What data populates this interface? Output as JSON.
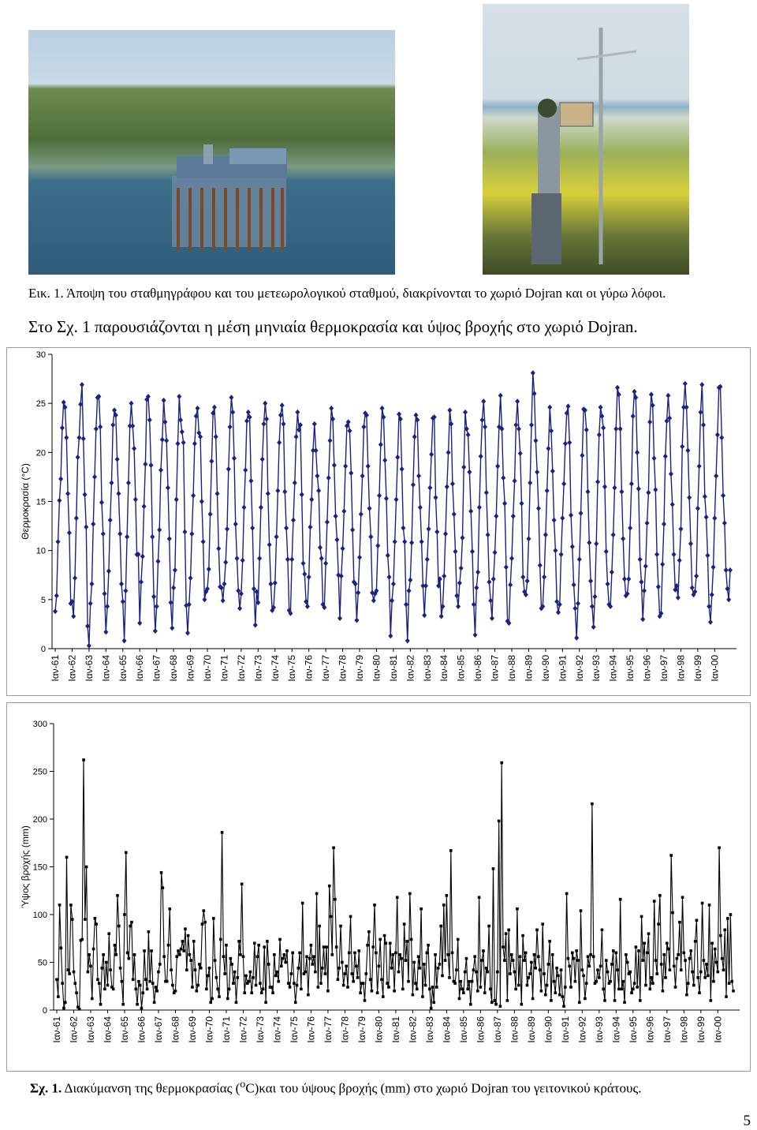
{
  "photos": {
    "left_alt": "",
    "right_alt": ""
  },
  "captions": {
    "figure1": "Εικ. 1. Άποψη του σταθμηγράφου και του μετεωρολογικού σταθμού, διακρίνονται το χωριό Dojran και οι γύρω λόφοι.",
    "intro_prefix": "Στο Σχ. 1 παρουσιάζονται η μέση μηνιαία θερμοκρασία και ύψος βροχής στο χωριό Dojran.",
    "figure2_prefix": "Σχ. 1.",
    "figure2_text_a": " Διακύμανση της θερμοκρασίας (",
    "figure2_sup": "o",
    "figure2_text_b": "C)και του ύψους βροχής (mm) στο χωριό Dojran του γειτονικού κράτους.",
    "page_number": "5"
  },
  "chart_data": [
    {
      "type": "line",
      "title": "",
      "ylabel": "Θερμοκρασία (°C)",
      "xlabel": "",
      "ylim": [
        0,
        30
      ],
      "yticks": [
        0,
        5,
        10,
        15,
        20,
        25,
        30
      ],
      "grid": false,
      "marker": "diamond",
      "color": "#1a237e",
      "xtick_labels": [
        "Ιαν-61",
        "Ιαν-62",
        "Ιαν-63",
        "Ιαν-64",
        "Ιαν-65",
        "Ιαν-66",
        "Ιαν-67",
        "Ιαν-68",
        "Ιαν-69",
        "Ιαν-70",
        "Ιαν-71",
        "Ιαν-72",
        "Ιαν-73",
        "Ιαν-74",
        "Ιαν-75",
        "Ιαν-76",
        "Ιαν-77",
        "Ιαν-78",
        "Ιαν-79",
        "Ιαν-80",
        "Ιαν-81",
        "Ιαν-82",
        "Ιαν-83",
        "Ιαν-84",
        "Ιαν-85",
        "Ιαν-86",
        "Ιαν-87",
        "Ιαν-88",
        "Ιαν-89",
        "Ιαν-90",
        "Ιαν-91",
        "Ιαν-92",
        "Ιαν-93",
        "Ιαν-94",
        "Ιαν-95",
        "Ιαν-96",
        "Ιαν-97",
        "Ιαν-98",
        "Ιαν-99",
        "Ιαν-00"
      ],
      "values": [
        3.8,
        5.4,
        10.9,
        15.1,
        17.3,
        22.5,
        25.1,
        24.6,
        21.5,
        15.8,
        11.8,
        4.6,
        4.8,
        3.3,
        7.2,
        13.3,
        19.5,
        21.5,
        24.9,
        26.9,
        21.4,
        15.7,
        12.4,
        2.3,
        0.3,
        4.6,
        6.6,
        12.7,
        17.5,
        22.4,
        25.6,
        25.7,
        22.6,
        14.9,
        11.7,
        5.6,
        1.7,
        4.3,
        7.9,
        13.1,
        16.9,
        22.8,
        24.3,
        23.8,
        19.3,
        15.8,
        11.7,
        6.6,
        4.8,
        0.8,
        5.9,
        11.4,
        16.9,
        22.7,
        25.0,
        22.7,
        20.4,
        15.2,
        9.6,
        9.6,
        2.6,
        6.8,
        9.4,
        14.5,
        18.8,
        25.4,
        25.7,
        23.3,
        18.7,
        11.4,
        5.3,
        1.8,
        4.3,
        8.9,
        12.1,
        18.2,
        21.3,
        25.3,
        23.1,
        21.2,
        16.4,
        11.2,
        4.7,
        2.1,
        6.2,
        8.0,
        15.2,
        20.9,
        25.7,
        23.3,
        22.1,
        21.0,
        11.9,
        4.4,
        1.6,
        4.5,
        7.2,
        11.7,
        15.6,
        20.9,
        23.7,
        24.5,
        22.0,
        21.6,
        15.0,
        10.9,
        5.0,
        5.8,
        6.1,
        8.1,
        13.7,
        19.1,
        24.0,
        24.6,
        21.6,
        15.8,
        10.2,
        6.3,
        6.2,
        4.9,
        6.6,
        8.8,
        12.2,
        18.3,
        22.6,
        25.6,
        24.1,
        19.4,
        12.7,
        9.2,
        5.9,
        4.1,
        5.6,
        9.0,
        14.4,
        18.2,
        23.2,
        24.1,
        23.6,
        17.1,
        12.3,
        6.1,
        2.4,
        5.8,
        4.7,
        9.2,
        14.4,
        19.3,
        22.9,
        25.0,
        23.4,
        15.8,
        10.6,
        6.6,
        3.9,
        4.2,
        6.7,
        11.4,
        16.1,
        21.0,
        23.8,
        24.8,
        22.9,
        16.0,
        12.3,
        9.1,
        3.9,
        3.6,
        9.1,
        13.1,
        16.9,
        21.6,
        24.1,
        22.3,
        22.8,
        15.7,
        8.7,
        7.6,
        4.8,
        4.3,
        7.3,
        12.4,
        15.2,
        20.2,
        22.9,
        20.2,
        17.6,
        16.1,
        10.3,
        9.2,
        4.5,
        4.2,
        8.7,
        12.9,
        17.4,
        21.2,
        24.5,
        23.4,
        18.7,
        13.5,
        11.1,
        7.5,
        3.1,
        7.4,
        10.2,
        14.0,
        18.6,
        22.7,
        23.1,
        22.2,
        17.9,
        12.1,
        6.8,
        6.6,
        2.9,
        5.7,
        9.3,
        13.7,
        17.6,
        22.6,
        24.0,
        23.8,
        18.6,
        14.3,
        11.4,
        5.7,
        4.9,
        5.6,
        5.9,
        10.5,
        15.6,
        20.8,
        24.5,
        23.6,
        19.2,
        15.3,
        9.5,
        7.3,
        1.3,
        4.9,
        6.6,
        10.9,
        15.2,
        19.5,
        23.9,
        23.4,
        18.3,
        12.3,
        10.9,
        4.5,
        0.8,
        5.9,
        7.0,
        10.8,
        16.7,
        21.6,
        23.8,
        23.3,
        17.6,
        14.4,
        10.9,
        6.4,
        3.4,
        6.4,
        9.1,
        12.2,
        16.4,
        19.8,
        23.5,
        23.6,
        15.4,
        11.9,
        6.4,
        7.1,
        3.3,
        4.3,
        7.4,
        11.7,
        16.5,
        20.0,
        24.3,
        22.9,
        16.8,
        13.7,
        9.9,
        5.4,
        4.3,
        6.7,
        8.2,
        11.3,
        18.5,
        24.1,
        22.4,
        21.8,
        18.0,
        14.0,
        9.9,
        4.5,
        1.4,
        6.2,
        7.8,
        14.4,
        19.6,
        23.3,
        25.2,
        22.6,
        15.9,
        11.6,
        6.8,
        4.9,
        3.1,
        7.1,
        9.8,
        13.5,
        18.6,
        22.6,
        25.8,
        22.4,
        17.4,
        14.8,
        8.3,
        2.8,
        2.6,
        6.5,
        9.2,
        13.5,
        17.1,
        22.8,
        25.2,
        22.4,
        19.9,
        14.8,
        7.3,
        5.8,
        5.5,
        6.9,
        11.2,
        16.9,
        22.8,
        28.1,
        26.0,
        21.2,
        18.0,
        14.3,
        8.5,
        4.1,
        4.3,
        7.3,
        11.6,
        16.1,
        20.4,
        24.6,
        22.2,
        18.1,
        13.1,
        10.0,
        4.8,
        3.7,
        4.5,
        9.6,
        13.3,
        16.8,
        20.9,
        24.0,
        24.7,
        21.0,
        13.6,
        10.4,
        6.5,
        4.1,
        1.1,
        4.6,
        9.1,
        13.8,
        19.7,
        24.4,
        24.3,
        22.3,
        16.0,
        10.8,
        6.9,
        4.3,
        2.2,
        5.3,
        10.7,
        17.0,
        21.8,
        24.6,
        23.7,
        22.5,
        16.5,
        9.9,
        6.6,
        4.5,
        4.3,
        7.8,
        11.6,
        16.4,
        22.4,
        26.6,
        25.9,
        22.4,
        16.0,
        11.2,
        7.1,
        5.4,
        5.6,
        7.1,
        12.3,
        16.8,
        23.7,
        26.2,
        25.6,
        20.0,
        16.3,
        9.1,
        6.8,
        3.0,
        5.9,
        8.4,
        12.8,
        15.9,
        23.1,
        25.9,
        24.8,
        19.4,
        16.2,
        9.6,
        6.3,
        3.3,
        3.6,
        8.6,
        12.7,
        19.6,
        23.2,
        25.8,
        23.5,
        17.8,
        14.7,
        9.6,
        6.0,
        6.4,
        5.2,
        9.0,
        12.2,
        20.6,
        24.6,
        27.0,
        24.6,
        20.2,
        15.4,
        10.7,
        6.2,
        5.5,
        5.8,
        7.4,
        14.3,
        18.6,
        24.1,
        26.9,
        22.8,
        15.5,
        13.4,
        9.5,
        4.3,
        2.7,
        5.5,
        8.3,
        13.3,
        17.6,
        21.8,
        26.6,
        26.7,
        21.5,
        15.6,
        12.8,
        8.0,
        6.1,
        5.0,
        8.0
      ]
    },
    {
      "type": "line",
      "title": "",
      "ylabel": "Ύψος βροχής (mm)",
      "xlabel": "",
      "ylim": [
        0,
        300
      ],
      "yticks": [
        0,
        50,
        100,
        150,
        200,
        250,
        300
      ],
      "grid": false,
      "marker": "square",
      "color": "#000000",
      "xtick_labels": [
        "Ιαν-61",
        "Ιαν-62",
        "Ιαν-63",
        "Ιαν-64",
        "Ιαν-65",
        "Ιαν-66",
        "Ιαν-67",
        "Ιαν-68",
        "Ιαν-69",
        "Ιαν-70",
        "Ιαν-71",
        "Ιαν-72",
        "Ιαν-73",
        "Ιαν-74",
        "Ιαν-75",
        "Ιαν-76",
        "Ιαν-77",
        "Ιαν-78",
        "Ιαν-79",
        "Ιαν-80",
        "Ιαν-81",
        "Ιαν-82",
        "Ιαν-83",
        "Ιαν-84",
        "Ιαν-85",
        "Ιαν-86",
        "Ιαν-87",
        "Ιαν-88",
        "Ιαν-89",
        "Ιαν-90",
        "Ιαν-91",
        "Ιαν-92",
        "Ιαν-93",
        "Ιαν-94",
        "Ιαν-95",
        "Ιαν-96",
        "Ιαν-97",
        "Ιαν-98",
        "Ιαν-99",
        "Ιαν-00"
      ],
      "values": [
        32,
        14,
        110,
        65,
        28,
        2,
        8,
        160,
        42,
        38,
        110,
        95,
        40,
        28,
        18,
        3,
        1,
        73,
        74,
        262,
        95,
        150,
        40,
        58,
        46,
        12,
        64,
        96,
        90,
        32,
        28,
        6,
        44,
        58,
        22,
        50,
        26,
        80,
        42,
        24,
        22,
        68,
        58,
        120,
        88,
        44,
        30,
        6,
        100,
        165,
        60,
        54,
        88,
        92,
        32,
        58,
        22,
        6,
        30,
        26,
        2,
        18,
        62,
        32,
        22,
        82,
        30,
        62,
        28,
        8,
        24,
        20,
        40,
        48,
        144,
        128,
        56,
        30,
        30,
        68,
        106,
        42,
        26,
        18,
        20,
        56,
        62,
        58,
        64,
        72,
        62,
        85,
        42,
        78,
        58,
        52,
        24,
        72,
        42,
        20,
        26,
        48,
        44,
        90,
        104,
        92,
        22,
        36,
        44,
        8,
        12,
        96,
        52,
        34,
        22,
        14,
        74,
        186,
        56,
        38,
        68,
        12,
        22,
        54,
        48,
        28,
        40,
        8,
        34,
        72,
        58,
        132,
        56,
        18,
        36,
        28,
        30,
        40,
        18,
        34,
        70,
        26,
        56,
        68,
        28,
        18,
        22,
        66,
        8,
        72,
        48,
        24,
        24,
        18,
        58,
        36,
        40,
        30,
        74,
        46,
        54,
        58,
        50,
        62,
        28,
        24,
        38,
        60,
        28,
        8,
        26,
        44,
        60,
        22,
        112,
        38,
        40,
        56,
        16,
        54,
        68,
        48,
        56,
        40,
        122,
        24,
        88,
        28,
        44,
        66,
        38,
        66,
        20,
        130,
        98,
        58,
        170,
        116,
        66,
        32,
        44,
        88,
        50,
        26,
        38,
        46,
        24,
        60,
        98,
        38,
        30,
        60,
        46,
        34,
        62,
        18,
        28,
        28,
        10,
        38,
        68,
        82,
        32,
        20,
        66,
        110,
        60,
        18,
        46,
        74,
        32,
        14,
        78,
        70,
        28,
        24,
        70,
        44,
        58,
        20,
        60,
        118,
        40,
        58,
        54,
        22,
        90,
        52,
        72,
        30,
        122,
        74,
        16,
        50,
        28,
        22,
        56,
        44,
        106,
        14,
        48,
        26,
        60,
        68,
        22,
        2,
        24,
        8,
        58,
        24,
        44,
        48,
        88,
        36,
        110,
        52,
        120,
        58,
        34,
        167,
        60,
        30,
        28,
        42,
        74,
        12,
        30,
        22,
        18,
        40,
        54,
        22,
        30,
        6,
        30,
        42,
        56,
        40,
        20,
        118,
        24,
        52,
        62,
        18,
        44,
        40,
        88,
        22,
        8,
        148,
        10,
        6,
        40,
        198,
        4,
        259,
        66,
        52,
        80,
        10,
        84,
        38,
        58,
        52,
        40,
        22,
        106,
        26,
        56,
        6,
        78,
        52,
        60,
        26,
        34,
        38,
        50,
        12,
        58,
        44,
        84,
        56,
        42,
        20,
        90,
        38,
        16,
        26,
        48,
        72,
        10,
        58,
        30,
        18,
        44,
        36,
        16,
        42,
        14,
        4,
        24,
        122,
        54,
        46,
        24,
        60,
        54,
        30,
        62,
        52,
        8,
        104,
        42,
        36,
        12,
        28,
        56,
        46,
        58,
        216,
        56,
        28,
        30,
        42,
        34,
        46,
        84,
        22,
        10,
        52,
        40,
        28,
        30,
        48,
        62,
        10,
        60,
        42,
        22,
        116,
        22,
        30,
        8,
        58,
        50,
        38,
        40,
        18,
        22,
        28,
        66,
        24,
        62,
        10,
        98,
        52,
        70,
        26,
        60,
        80,
        22,
        34,
        28,
        114,
        52,
        38,
        90,
        120,
        48,
        20,
        58,
        34,
        70,
        64,
        42,
        162,
        102,
        46,
        24,
        54,
        58,
        92,
        42,
        118,
        60,
        52,
        16,
        28,
        54,
        62,
        40,
        26,
        72,
        94,
        34,
        18,
        40,
        112,
        52,
        34,
        48,
        36,
        110,
        10,
        70,
        30,
        64,
        50,
        40,
        170,
        78,
        54,
        42,
        84,
        14,
        96,
        28,
        100,
        30,
        20
      ]
    }
  ]
}
